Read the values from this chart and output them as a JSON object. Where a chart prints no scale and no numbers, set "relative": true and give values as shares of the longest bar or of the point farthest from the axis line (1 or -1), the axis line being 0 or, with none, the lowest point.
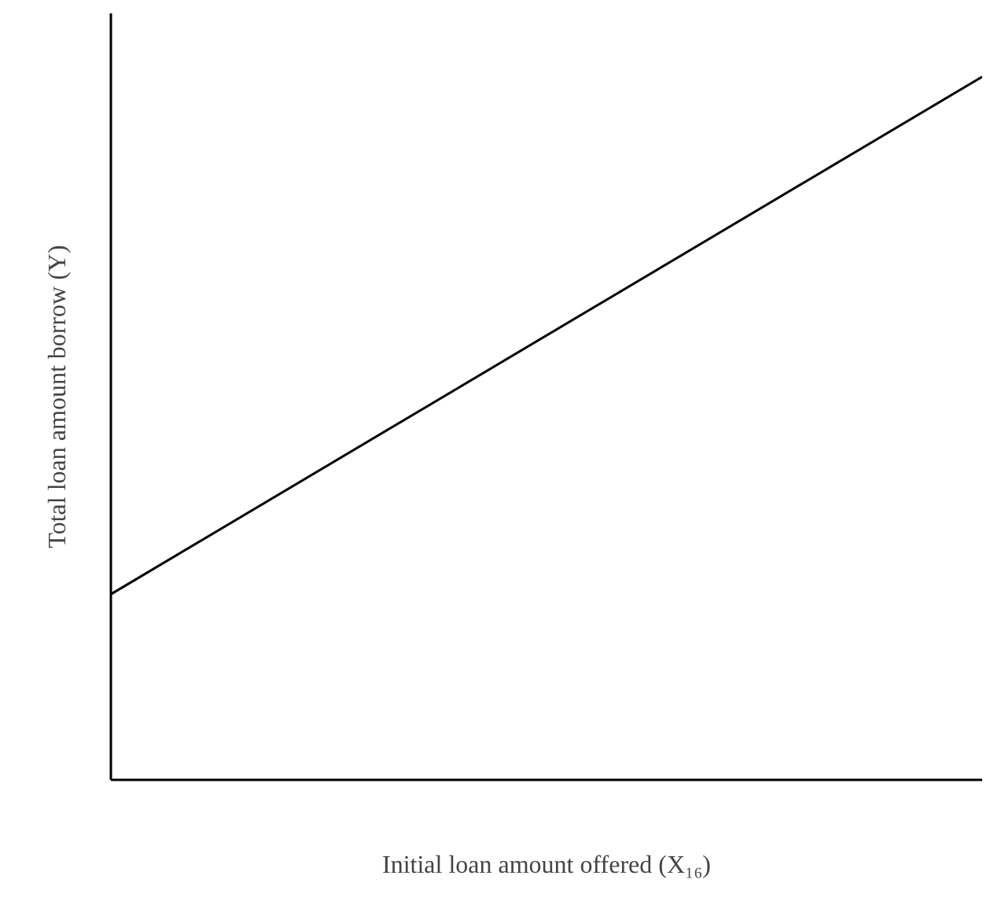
{
  "chart_data": {
    "type": "line",
    "relative": true,
    "xlabel": "Initial loan amount offered (X₁₆)",
    "ylabel": "Total loan amount borrow (Y)",
    "categories": [
      null,
      null
    ],
    "series": [
      {
        "color": "#000000",
        "values": [
          0.264,
          1
        ]
      }
    ]
  }
}
